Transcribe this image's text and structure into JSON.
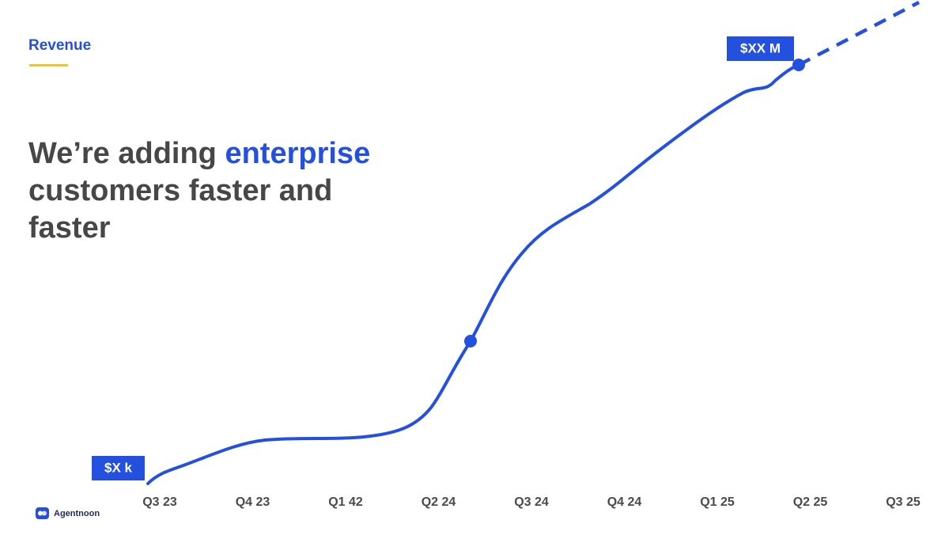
{
  "section": "Revenue",
  "headline": {
    "lead": "We’re adding ",
    "highlight": "enterprise",
    "line2": "customers faster and",
    "line3": "faster"
  },
  "timeline": [
    "Q3 23",
    "Q4 23",
    "Q1  42",
    "Q2 24",
    "Q3 24",
    "Q4 24",
    "Q1 25",
    "Q2 25",
    "Q3 25"
  ],
  "callouts": {
    "start": "$X k",
    "end": "$XX M"
  },
  "logo": "Agentnoon"
}
